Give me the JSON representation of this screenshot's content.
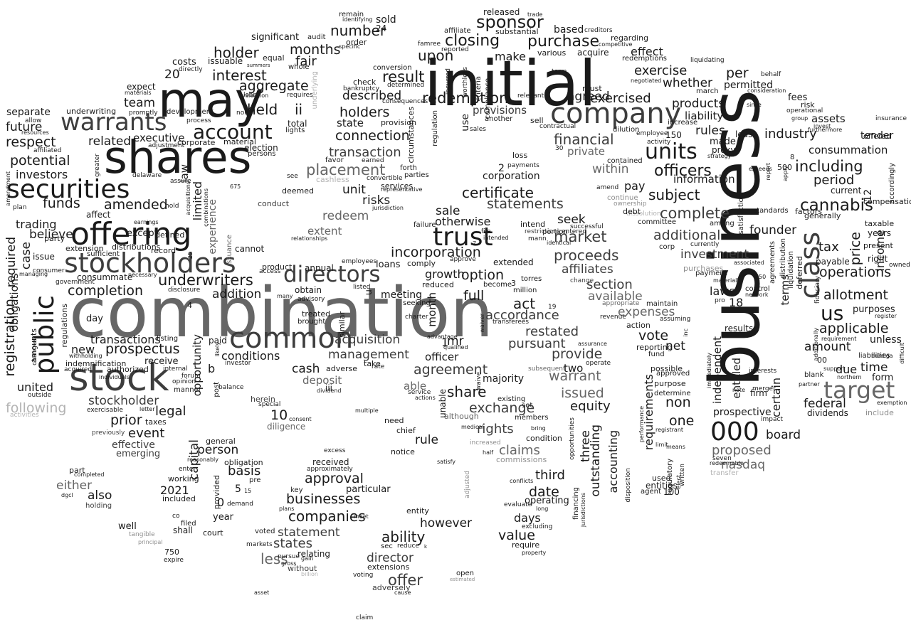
{
  "words": {
    "business": "business",
    "combination": "combination",
    "initial": "initial",
    "shares": "shares",
    "may": "may",
    "stock": "stock",
    "company": "company",
    "offering": "offering",
    "stockholders": "stockholders",
    "securities": "securities",
    "public": "public",
    "common": "common",
    "warrants": "warrants",
    "trust": "trust",
    "directors": "directors",
    "class": "class",
    "target": "target",
    "units": "units",
    "account": "account",
    "000": "000",
    "sponsor": "sponsor",
    "us": "us",
    "cannabis": "cannabis",
    "closing": "closing",
    "purchase": "purchase",
    "redemption": "redemption",
    "placement": "placement",
    "underwriters": "underwriters",
    "completion": "completion",
    "prospectus": "prospectus",
    "registration": "registration",
    "certificate": "certificate",
    "financial": "financial",
    "complete": "complete",
    "including": "including",
    "officers": "officers",
    "market": "market",
    "proceeds": "proceeds",
    "incorporation": "incorporation",
    "transaction": "transaction",
    "connection": "connection",
    "holders": "holders",
    "described": "described",
    "upon": "upon",
    "result": "result",
    "number": "number",
    "months": "months",
    "holder": "holder",
    "interest": "interest",
    "aggregate": "aggregate",
    "fair": "fair",
    "held": "held",
    "ii": "ii",
    "executive": "executive",
    "respect": "respect",
    "future": "future",
    "separate": "separate",
    "related": "related",
    "team": "team",
    "potential": "potential",
    "investors": "investors",
    "funds": "funds",
    "amended": "amended",
    "believe": "believe",
    "trading": "trading",
    "required": "required",
    "case": "case",
    "obligations": "obligations",
    "united": "united",
    "following": "following",
    "transactions": "transactions",
    "new": "new",
    "stockholder": "stockholder",
    "prior": "prior",
    "event": "event",
    "legal": "legal",
    "10": "10",
    "effective": "effective",
    "emerging": "emerging",
    "acquisition": "acquisition",
    "management": "management",
    "agreement": "agreement",
    "cash": "cash",
    "conditions": "conditions",
    "deposit": "deposit",
    "share": "share",
    "exchange": "exchange",
    "rights": "rights",
    "claims": "claims",
    "third": "third",
    "date": "date",
    "approval": "approval",
    "businesses": "businesses",
    "companies": "companies",
    "statement": "statement",
    "states": "states",
    "less": "less",
    "ability": "ability",
    "director": "director",
    "offer": "offer",
    "however": "however",
    "value": "value",
    "days": "days",
    "rule": "rule",
    "pursuant": "pursuant",
    "restated": "restated",
    "provide": "provide",
    "warrant": "warrant",
    "issued": "issued",
    "equity": "equity",
    "outstanding": "outstanding",
    "accounting": "accounting",
    "three": "three",
    "vote": "vote",
    "net": "net",
    "non": "non",
    "one": "one",
    "requirements": "requirements",
    "independent": "independent",
    "entitled": "entitled",
    "certain": "certain",
    "terms": "terms",
    "federal": "federal",
    "amount": "amount",
    "due": "due",
    "time": "time",
    "applicable": "applicable",
    "allotment": "allotment",
    "operations": "operations",
    "price": "price",
    "tax": "tax",
    "founder": "founder",
    "period": "period",
    "industry": "industry",
    "consummation": "consummation",
    "assets": "assets",
    "rules": "rules",
    "products": "products",
    "liability": "liability",
    "whether": "whether",
    "exercise": "exercise",
    "exercised": "exercised",
    "agreed": "agreed",
    "per": "per",
    "effect": "effect",
    "provisions": "provisions",
    "state": "state",
    "use": "use",
    "make": "make",
    "based": "based",
    "subject": "subject",
    "information": "information",
    "additional": "additional",
    "investment": "investment",
    "affiliates": "affiliates",
    "section": "section",
    "available": "available",
    "expenses": "expenses",
    "seek": "seek",
    "pay": "pay",
    "within": "within",
    "private": "private",
    "statements": "statements",
    "unit": "unit",
    "risks": "risks",
    "sale": "sale",
    "otherwise": "otherwise",
    "option": "option",
    "growth": "growth",
    "full": "full",
    "accordance": "accordance",
    "act": "act",
    "month": "month",
    "redeem": "redeem",
    "extent": "extent",
    "corporation": "corporation",
    "limited": "limited",
    "law": "law",
    "experience": "experience",
    "addition": "addition",
    "20": "20",
    "opportunity": "opportunity",
    "capital": "capital",
    "basis": "basis",
    "person": "person",
    "2021": "2021",
    "either": "either",
    "also": "also",
    "nasdaq": "nasdaq",
    "proposed": "proposed",
    "board": "board",
    "prospective": "prospective",
    "laws": "laws",
    "18": "18",
    "12": "12",
    "income": "income",
    "mr": "mr",
    "officer": "officer",
    "majority": "majority",
    "able": "able",
    "particular": "particular",
    "received": "received",
    "diligence": "diligence",
    "meeting": "meeting",
    "material": "material",
    "election": "election",
    "total": "total",
    "extension": "extension",
    "distributions": "distributions",
    "regulations": "regulations",
    "indemnification": "indemnification",
    "authorized": "authorized",
    "consummate": "consummate",
    "except": "except",
    "defined": "defined",
    "cannot": "cannot",
    "annual": "annual",
    "loans": "loans",
    "reduced": "reduced",
    "obtain": "obtain",
    "paid": "paid",
    "receive": "receive",
    "taxes": "taxes",
    "underwriting": "underwriting",
    "expect": "expect",
    "costs": "costs",
    "issuable": "issuable",
    "significant": "significant",
    "equal": "equal",
    "whole": "whole",
    "audit": "audit",
    "24": "24",
    "sold": "sold",
    "remain": "remain",
    "released": "released",
    "substantial": "substantial",
    "various": "various",
    "acquire": "acquire",
    "must": "must",
    "regarding": "regarding",
    "redemptions": "redemptions",
    "permitted": "permitted",
    "march": "march",
    "fees": "fees",
    "risk": "risk",
    "tender": "tender",
    "compensation": "compensation",
    "present": "present",
    "right": "right",
    "taxable": "taxable",
    "years": "years",
    "purposes": "purposes",
    "unless": "unless",
    "form": "form",
    "payable": "payable",
    "generally": "generally",
    "factors": "factors",
    "current": "current",
    "500": "500",
    "offered": "offered",
    "dividends": "dividends",
    "include": "include",
    "firm": "firm",
    "results": "results",
    "00": "00",
    "2": "2",
    "1": "1",
    "5": "5",
    "0": "0",
    "b": "b",
    "3": "3",
    "u": "u",
    "150": "150",
    "100": "100",
    "750": "750",
    "made": "made",
    "proxy": "proxy",
    "entities": "entities",
    "agent": "agent",
    "used": "used",
    "possible": "possible",
    "determine": "determine",
    "purpose": "purpose",
    "approved": "approved",
    "reporting": "reporting",
    "fund": "fund",
    "action": "action",
    "maintain": "maintain",
    "intend": "intend",
    "portion": "portion",
    "become": "become",
    "million": "million",
    "loss": "loss",
    "payments": "payments",
    "conduct": "conduct",
    "deemed": "deemed",
    "see": "see",
    "cashless": "cashless",
    "favor": "favor",
    "earned": "earned",
    "forth": "forth",
    "parties": "parties",
    "services": "services",
    "representative": "representative",
    "convertible": "convertible",
    "jurisdiction": "jurisdiction",
    "delaware": "delaware",
    "assure": "assure",
    "persons": "persons",
    "corporate": "corporate",
    "lights": "lights",
    "directly": "directly",
    "development": "development",
    "process": "process",
    "check": "check",
    "bankruptcy": "bankruptcy",
    "determined": "determined",
    "conversion": "conversion",
    "provision": "provision",
    "consequences": "consequences",
    "circumstances": "circumstances",
    "regulation": "regulation",
    "criteria": "criteria",
    "compliance": "compliance",
    "another": "another",
    "sales": "sales",
    "sell": "sell",
    "contractual": "contractual",
    "term": "term",
    "relevant": "relevant",
    "incurred": "incurred",
    "worthless": "worthless",
    "famree": "famree",
    "affiliate": "affiliate",
    "reported": "reported",
    "creditors": "creditors",
    "competitive": "competitive",
    "negotiated": "negotiated",
    "liquidating": "liquidating",
    "behalf": "behalf",
    "consideration": "consideration",
    "operational": "operational",
    "group": "group",
    "invest": "invest",
    "furthermore": "furthermore",
    "insurance": "insurance",
    "owned": "owned",
    "register": "register",
    "exemption": "exemption",
    "liabilities": "liabilities",
    "requirement": "requirement",
    "support": "support",
    "northern": "northern",
    "partner": "partner",
    "blank": "blank",
    "deferred": "deferred",
    "fiduciary": "fiduciary",
    "liquidation": "liquidation",
    "agreements": "agreements",
    "distribution": "distribution",
    "additionally": "additionally",
    "difficult": "difficult",
    "accordingly": "accordingly",
    "standards": "standards",
    "among": "among",
    "currently": "currently",
    "purchases": "purchases",
    "payment": "payment",
    "associated": "associated",
    "materially": "materially",
    "control": "control",
    "network": "network",
    "pro": "pro",
    "note": "note",
    "merger": "merger",
    "interests": "interests",
    "impact": "impact",
    "immediately": "immediately",
    "seven": "seven",
    "redeemable": "redeemable",
    "transfer": "transfer",
    "written": "written",
    "elect": "elect",
    "registrant": "registrant",
    "limit": "limit",
    "means": "means",
    "performance": "performance",
    "regulatory": "regulatory",
    "assuming": "assuming",
    "corp": "corp",
    "committee": "committee",
    "dissolution": "dissolution",
    "debt": "debt",
    "ownership": "ownership",
    "continue": "continue",
    "amend": "amend",
    "contained": "contained",
    "dilution": "dilution",
    "employee": "employee",
    "activity": "activity",
    "increase": "increase",
    "satisfaction": "satisfaction",
    "least": "least",
    "strategy": "strategy",
    "exceeds": "exceeds",
    "report": "report",
    "apply": "apply",
    "8": "8",
    "30": "30",
    "restrictions": "restrictions",
    "mann": "mann",
    "entered": "entered",
    "successful": "successful",
    "identical": "identical",
    "revenue": "revenue",
    "change": "change",
    "appropriate": "appropriate",
    "assurance": "assurance",
    "operate": "operate",
    "subsequent": "subsequent",
    "waive": "waive",
    "qualified": "qualified",
    "transferees": "transferees",
    "waiver": "waiver",
    "19": "19",
    "torres": "torres",
    "extended": "extended",
    "employees": "employees",
    "comply": "comply",
    "approve": "approve",
    "intended": "intended",
    "file": "file",
    "failure": "failure",
    "7": "7",
    "seeking": "seeking",
    "charter": "charter",
    "advantage": "advantage",
    "listed": "listed",
    "similar": "similar",
    "treated": "treated",
    "brought": "brought",
    "advisory": "advisory",
    "many": "many",
    "access": "access",
    "product": "product",
    "record": "record",
    "sufficient": "sufficient",
    "consumer": "consumer",
    "necessary": "necessary",
    "government": "government",
    "issue": "issue",
    "party": "party",
    "plan": "plan",
    "affect": "affect",
    "earnings": "earnings",
    "managing": "managing",
    "amounts": "amounts",
    "changes": "changes",
    "withholding": "withholding",
    "acquired": "acquired",
    "day": "day",
    "4": "4",
    "listing": "listing",
    "internal": "internal",
    "opinion": "opinion",
    "manner": "manner",
    "individuals": "individuals",
    "exercisable": "exercisable",
    "letter": "letter",
    "previously": "previously",
    "activities": "activities",
    "outside": "outside",
    "herein": "herein",
    "special": "special",
    "consent": "consent",
    "multiple": "multiple",
    "need": "need",
    "chief": "chief",
    "notice": "notice",
    "excess": "excess",
    "approximately": "approximately",
    "satisfy": "satisfy",
    "adjusted": "adjusted",
    "commissions": "commissions",
    "conflicts": "conflicts",
    "condition": "condition",
    "members": "members",
    "bring": "bring",
    "set": "set",
    "existing": "existing",
    "although": "although",
    "medical": "medical",
    "increased": "increased",
    "half": "half",
    "evaluate": "evaluate",
    "long": "long",
    "operating": "operating",
    "excluding": "excluding",
    "require": "require",
    "property": "property",
    "financing": "financing",
    "opportunities": "opportunities",
    "jurisdictions": "jurisdictions",
    "disposition": "disposition",
    "unable": "unable",
    "adverse": "adverse",
    "take": "take",
    "rate": "rate",
    "iii": "iii",
    "dividend": "dividend",
    "actions": "actions",
    "service": "service",
    "post": "post",
    "balance": "balance",
    "investor": "investor",
    "provided": "provided",
    "obligation": "obligation",
    "pre": "pre",
    "15": "15",
    "demand": "demand",
    "year": "year",
    "general": "general",
    "reasonably": "reasonably",
    "enter": "enter",
    "working": "working",
    "included": "included",
    "filed": "filed",
    "shall": "shall",
    "co": "co",
    "court": "court",
    "well": "well",
    "tangible": "tangible",
    "principal": "principal",
    "expire": "expire",
    "part": "part",
    "completed": "completed",
    "dgcl": "dgcl",
    "holding": "holding",
    "plans": "plans",
    "key": "key",
    "pursue": "pursue",
    "gross": "gross",
    "voted": "voted",
    "markets": "markets",
    "relating": "relating",
    "gain": "gain",
    "without": "without",
    "billion": "billion",
    "extensions": "extensions",
    "adversely": "adversely",
    "cause": "cause",
    "voting": "voting",
    "sec": "sec",
    "reduce": "reduce",
    "k": "k",
    "open": "open",
    "estimated": "estimated",
    "asset": "asset",
    "claim": "claim",
    "entity": "entity",
    "meet": "meet",
    "two": "two",
    "inc": "inc",
    "underlying": "underlying",
    "loan": "loan",
    "valuation": "valuation",
    "none": "none",
    "summers": "summers",
    "requires": "requires",
    "hold": "hold",
    "adjustment": "adjustment",
    "materials": "materials",
    "promptly": "promptly",
    "allow": "allow",
    "resources": "resources",
    "affiliated": "affiliated",
    "greater": "greater",
    "amendment": "amendment",
    "acquisitions": "acquisitions",
    "combinations": "combinations",
    "675": "675",
    "issuance": "issuance",
    "relationships": "relationships",
    "disclosure": "disclosure",
    "forum": "forum",
    "likely": "likely",
    "25": "25",
    "order": "order",
    "identifying": "identifying",
    "trade": "trade",
    "specific": "specific",
    "burdiga": "burdiga",
    "since": "since",
    "50": "50"
  },
  "colors": {
    "black": "#1a1a1a",
    "dark": "#3d3d3d",
    "mid": "#666666",
    "light": "#8f8f8f",
    "faint": "#b3b3b3"
  }
}
